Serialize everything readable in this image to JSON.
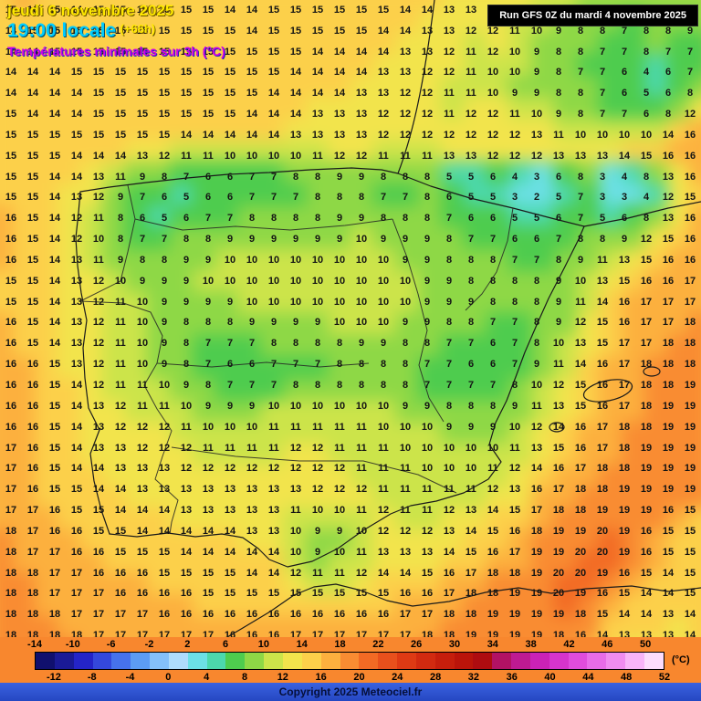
{
  "header": {
    "date_line": "jeudi 6 novembre 2025",
    "time_line": "19:00 locale",
    "offset": "(+66h)",
    "subtitle": "Températures minimales sur 3h (°C)",
    "run_info": "Run GFS 0Z du mardi 4 novembre 2025"
  },
  "footer": {
    "copyright": "Copyright 2025 Meteociel.fr",
    "unit_label": "(°C)"
  },
  "legend": {
    "min": -14,
    "max": 52,
    "step": 2,
    "ticks_top": [
      -14,
      -10,
      -6,
      -2,
      2,
      6,
      10,
      14,
      18,
      22,
      26,
      30,
      34,
      38,
      42,
      46,
      50
    ],
    "ticks_bottom": [
      -12,
      -8,
      -4,
      0,
      4,
      8,
      12,
      16,
      20,
      24,
      28,
      32,
      36,
      40,
      44,
      48,
      52
    ],
    "colors": [
      "#10106e",
      "#1a1a96",
      "#2424c8",
      "#3448dc",
      "#4672ec",
      "#5c9cf4",
      "#84c0fa",
      "#aedcfc",
      "#6ce0e6",
      "#4cd8ac",
      "#4ecc4e",
      "#8ed846",
      "#cce44a",
      "#f2e44c",
      "#fcd04a",
      "#fcb03e",
      "#f98c32",
      "#f26a24",
      "#e8501c",
      "#de3a14",
      "#d22a10",
      "#c61e0c",
      "#ba140a",
      "#ae0c10",
      "#b21264",
      "#be1a92",
      "#ca22b6",
      "#d634cc",
      "#e04cdc",
      "#e86ce8",
      "#f08cf0",
      "#f8b4f8",
      "#fcdcfc"
    ]
  },
  "chart_data": {
    "type": "heatmap",
    "title": "Températures minimales sur 3h (°C)",
    "unit": "°C",
    "value_range": [
      -14,
      52
    ],
    "grid": [
      [
        15,
        16,
        15,
        14,
        15,
        15,
        15,
        15,
        15,
        15,
        14,
        14,
        15,
        15,
        15,
        15,
        15,
        15,
        14,
        14,
        13,
        13,
        12,
        12,
        11,
        10,
        9,
        8,
        9,
        8,
        8,
        9
      ],
      [
        14,
        15,
        15,
        15,
        15,
        15,
        15,
        15,
        15,
        15,
        15,
        14,
        15,
        15,
        15,
        15,
        15,
        14,
        14,
        13,
        13,
        12,
        12,
        11,
        10,
        9,
        8,
        8,
        7,
        8,
        8,
        9
      ],
      [
        14,
        14,
        15,
        15,
        15,
        15,
        15,
        15,
        15,
        15,
        15,
        15,
        15,
        15,
        14,
        14,
        14,
        14,
        13,
        13,
        12,
        11,
        12,
        10,
        9,
        8,
        8,
        7,
        7,
        8,
        7,
        7
      ],
      [
        14,
        14,
        14,
        15,
        15,
        15,
        15,
        15,
        15,
        15,
        15,
        15,
        15,
        14,
        14,
        14,
        14,
        13,
        13,
        12,
        12,
        11,
        10,
        10,
        9,
        8,
        7,
        7,
        6,
        4,
        6,
        7
      ],
      [
        14,
        14,
        14,
        14,
        15,
        15,
        15,
        15,
        15,
        15,
        15,
        15,
        14,
        14,
        14,
        14,
        13,
        13,
        12,
        12,
        11,
        11,
        10,
        9,
        9,
        8,
        8,
        7,
        6,
        5,
        6,
        8
      ],
      [
        15,
        14,
        14,
        14,
        15,
        15,
        15,
        15,
        15,
        15,
        15,
        14,
        14,
        14,
        13,
        13,
        13,
        12,
        12,
        12,
        11,
        12,
        12,
        11,
        10,
        9,
        8,
        7,
        7,
        6,
        8,
        12
      ],
      [
        15,
        15,
        15,
        15,
        15,
        15,
        15,
        15,
        14,
        14,
        14,
        14,
        14,
        13,
        13,
        13,
        13,
        12,
        12,
        12,
        12,
        12,
        12,
        12,
        13,
        11,
        10,
        10,
        10,
        10,
        14,
        16
      ],
      [
        15,
        15,
        15,
        14,
        14,
        14,
        13,
        12,
        11,
        11,
        10,
        10,
        10,
        10,
        11,
        12,
        12,
        11,
        11,
        11,
        13,
        13,
        12,
        12,
        12,
        13,
        13,
        13,
        14,
        15,
        16,
        16
      ],
      [
        15,
        15,
        14,
        14,
        13,
        11,
        9,
        8,
        7,
        6,
        6,
        7,
        7,
        8,
        8,
        9,
        9,
        8,
        8,
        8,
        5,
        5,
        6,
        4,
        3,
        6,
        8,
        3,
        4,
        8,
        13,
        16
      ],
      [
        15,
        15,
        14,
        13,
        12,
        9,
        7,
        6,
        5,
        6,
        6,
        7,
        7,
        7,
        8,
        8,
        8,
        7,
        7,
        8,
        6,
        5,
        5,
        3,
        2,
        5,
        7,
        3,
        3,
        4,
        12,
        15
      ],
      [
        16,
        15,
        14,
        12,
        11,
        8,
        6,
        5,
        6,
        7,
        7,
        8,
        8,
        8,
        8,
        9,
        9,
        8,
        8,
        8,
        7,
        6,
        6,
        5,
        5,
        6,
        7,
        5,
        6,
        8,
        13,
        16
      ],
      [
        16,
        15,
        14,
        12,
        10,
        8,
        7,
        7,
        8,
        8,
        9,
        9,
        9,
        9,
        9,
        9,
        10,
        9,
        9,
        9,
        8,
        7,
        7,
        6,
        6,
        7,
        8,
        8,
        9,
        12,
        15,
        16
      ],
      [
        16,
        15,
        14,
        13,
        11,
        9,
        8,
        8,
        9,
        9,
        10,
        10,
        10,
        10,
        10,
        10,
        10,
        10,
        9,
        9,
        8,
        8,
        8,
        7,
        7,
        8,
        9,
        11,
        13,
        15,
        16,
        16
      ],
      [
        15,
        15,
        14,
        13,
        12,
        10,
        9,
        9,
        9,
        10,
        10,
        10,
        10,
        10,
        10,
        10,
        10,
        10,
        10,
        9,
        9,
        8,
        8,
        8,
        8,
        9,
        10,
        13,
        15,
        16,
        16,
        17
      ],
      [
        15,
        15,
        14,
        13,
        12,
        11,
        10,
        9,
        9,
        9,
        9,
        10,
        10,
        10,
        10,
        10,
        10,
        10,
        10,
        9,
        9,
        9,
        8,
        8,
        8,
        9,
        11,
        14,
        16,
        17,
        17,
        17
      ],
      [
        16,
        15,
        14,
        13,
        12,
        11,
        10,
        9,
        8,
        8,
        8,
        9,
        9,
        9,
        9,
        10,
        10,
        10,
        9,
        9,
        8,
        8,
        7,
        7,
        8,
        9,
        12,
        15,
        16,
        17,
        17,
        18
      ],
      [
        16,
        15,
        14,
        13,
        12,
        11,
        10,
        9,
        8,
        7,
        7,
        7,
        8,
        8,
        8,
        8,
        9,
        9,
        8,
        8,
        7,
        7,
        6,
        7,
        8,
        10,
        13,
        15,
        17,
        17,
        18,
        18
      ],
      [
        16,
        16,
        15,
        13,
        12,
        11,
        10,
        9,
        8,
        7,
        6,
        6,
        7,
        7,
        7,
        8,
        8,
        8,
        8,
        7,
        7,
        6,
        6,
        7,
        9,
        11,
        14,
        16,
        17,
        18,
        18,
        18
      ],
      [
        16,
        16,
        15,
        14,
        12,
        11,
        11,
        10,
        9,
        8,
        7,
        7,
        7,
        8,
        8,
        8,
        8,
        8,
        8,
        7,
        7,
        7,
        7,
        8,
        10,
        12,
        15,
        16,
        17,
        18,
        18,
        19
      ],
      [
        16,
        16,
        15,
        14,
        13,
        12,
        11,
        11,
        10,
        9,
        9,
        9,
        10,
        10,
        10,
        10,
        10,
        10,
        9,
        9,
        8,
        8,
        8,
        9,
        11,
        13,
        15,
        16,
        17,
        18,
        19,
        19
      ],
      [
        16,
        16,
        15,
        14,
        13,
        12,
        12,
        12,
        11,
        10,
        10,
        10,
        11,
        11,
        11,
        11,
        11,
        10,
        10,
        10,
        9,
        9,
        9,
        10,
        12,
        14,
        16,
        17,
        18,
        18,
        19,
        19
      ],
      [
        17,
        16,
        15,
        14,
        13,
        13,
        12,
        12,
        12,
        11,
        11,
        11,
        11,
        12,
        12,
        11,
        11,
        11,
        10,
        10,
        10,
        10,
        10,
        11,
        13,
        15,
        16,
        17,
        18,
        19,
        19,
        19
      ],
      [
        17,
        16,
        15,
        14,
        14,
        13,
        13,
        13,
        12,
        12,
        12,
        12,
        12,
        12,
        12,
        12,
        11,
        11,
        11,
        10,
        10,
        10,
        11,
        12,
        14,
        16,
        17,
        18,
        18,
        19,
        19,
        19
      ],
      [
        17,
        16,
        15,
        15,
        14,
        14,
        13,
        13,
        13,
        13,
        13,
        13,
        13,
        13,
        12,
        12,
        12,
        11,
        11,
        11,
        11,
        11,
        12,
        13,
        16,
        17,
        18,
        18,
        19,
        19,
        19,
        19
      ],
      [
        17,
        17,
        16,
        15,
        15,
        14,
        14,
        14,
        13,
        13,
        13,
        13,
        13,
        11,
        10,
        10,
        11,
        12,
        11,
        11,
        12,
        13,
        14,
        15,
        17,
        18,
        18,
        19,
        19,
        19,
        16,
        15
      ],
      [
        18,
        17,
        16,
        16,
        15,
        15,
        14,
        14,
        14,
        14,
        14,
        13,
        13,
        10,
        9,
        9,
        10,
        12,
        12,
        12,
        13,
        14,
        15,
        16,
        18,
        19,
        19,
        20,
        19,
        16,
        15,
        15
      ],
      [
        18,
        17,
        17,
        16,
        16,
        15,
        15,
        15,
        14,
        14,
        14,
        14,
        14,
        10,
        9,
        10,
        11,
        13,
        13,
        13,
        14,
        15,
        16,
        17,
        19,
        19,
        20,
        20,
        19,
        16,
        15,
        15
      ],
      [
        18,
        18,
        17,
        17,
        16,
        16,
        16,
        15,
        15,
        15,
        15,
        14,
        14,
        12,
        11,
        11,
        12,
        14,
        14,
        15,
        16,
        17,
        18,
        18,
        19,
        20,
        20,
        19,
        16,
        15,
        14,
        15
      ],
      [
        18,
        18,
        17,
        17,
        17,
        16,
        16,
        16,
        16,
        15,
        15,
        15,
        15,
        15,
        15,
        15,
        15,
        15,
        16,
        16,
        17,
        18,
        18,
        19,
        19,
        20,
        19,
        16,
        15,
        14,
        14,
        15
      ],
      [
        18,
        18,
        18,
        17,
        17,
        17,
        17,
        16,
        16,
        16,
        16,
        16,
        16,
        16,
        16,
        16,
        16,
        16,
        17,
        17,
        18,
        18,
        19,
        19,
        19,
        19,
        18,
        15,
        14,
        14,
        13,
        14
      ],
      [
        18,
        18,
        18,
        18,
        17,
        17,
        17,
        17,
        17,
        17,
        16,
        16,
        16,
        17,
        17,
        17,
        17,
        17,
        17,
        18,
        18,
        19,
        19,
        19,
        19,
        18,
        16,
        14,
        13,
        13,
        13,
        14
      ]
    ]
  }
}
